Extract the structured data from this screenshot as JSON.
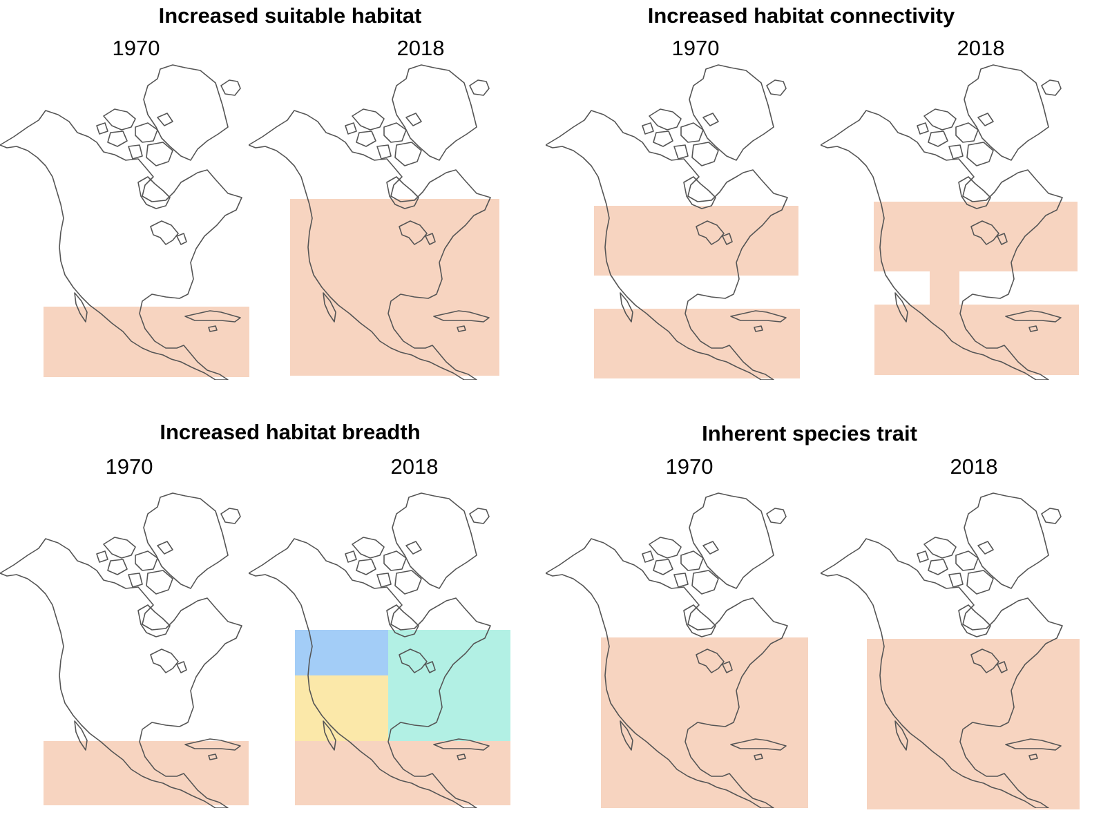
{
  "colors": {
    "salmon": "#f7d4c0",
    "blue": "#a3cdf7",
    "yellow": "#fbe8a9",
    "teal": "#b2f0e4",
    "outline": "#555555"
  },
  "panels": [
    {
      "title": "Increased suitable habitat",
      "year_a": "1970",
      "year_b": "2018"
    },
    {
      "title": "Increased habitat connectivity",
      "year_a": "1970",
      "year_b": "2018"
    },
    {
      "title": "Increased habitat breadth",
      "year_a": "1970",
      "year_b": "2018"
    },
    {
      "title": "Inherent species trait",
      "year_a": "1970",
      "year_b": "2018"
    }
  ]
}
